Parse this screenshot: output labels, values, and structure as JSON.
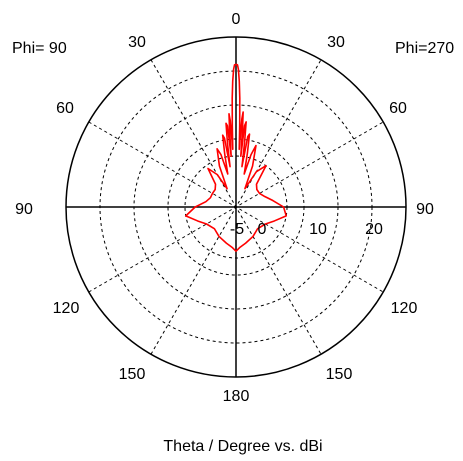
{
  "chart_data": {
    "type": "polar-line",
    "phi_left": "Phi= 90",
    "phi_right": "Phi=270",
    "xlabel": "Theta / Degree vs. dBi",
    "radial_unit": "dBi",
    "radial_range": [
      -20,
      30
    ],
    "radial_rings": [
      -5,
      0,
      10,
      20
    ],
    "radial_tick_labels": [
      "-5",
      "0",
      "10",
      "20"
    ],
    "angle_tick_labels": {
      "top": "0",
      "upper_left_30": "30",
      "upper_right_30": "30",
      "left_60": "60",
      "right_60": "60",
      "left_90": "90",
      "right_90": "90",
      "left_120": "120",
      "right_120": "120",
      "left_150": "150",
      "right_150": "150",
      "bottom": "180"
    },
    "series_color": "#ff0000",
    "series": [
      {
        "points": [
          [
            0,
            22
          ],
          [
            0.6,
            21.8
          ],
          [
            1.0,
            20.5
          ],
          [
            1.5,
            17
          ],
          [
            2.0,
            12
          ],
          [
            2.6,
            4
          ],
          [
            3.2,
            -3
          ],
          [
            3.8,
            6
          ],
          [
            4.3,
            8
          ],
          [
            4.8,
            3
          ],
          [
            5.4,
            -5
          ],
          [
            6.0,
            4
          ],
          [
            6.8,
            5.2
          ],
          [
            7.6,
            -1
          ],
          [
            8.4,
            -8
          ],
          [
            9.5,
            1
          ],
          [
            10.5,
            1.8
          ],
          [
            12,
            -4
          ],
          [
            14,
            -10
          ],
          [
            16,
            -4
          ],
          [
            18,
            -1
          ],
          [
            22,
            -7
          ],
          [
            26,
            -14
          ],
          [
            30,
            -8
          ],
          [
            36,
            -5
          ],
          [
            42,
            -11
          ],
          [
            50,
            -12
          ],
          [
            60,
            -12
          ],
          [
            70,
            -11
          ],
          [
            80,
            -9
          ],
          [
            90,
            -6
          ],
          [
            100,
            -5
          ],
          [
            110,
            -8
          ],
          [
            120,
            -10
          ],
          [
            135,
            -11
          ],
          [
            150,
            -10
          ],
          [
            165,
            -9
          ],
          [
            175,
            -8
          ],
          [
            180,
            -7
          ],
          [
            -175,
            -8
          ],
          [
            -165,
            -9
          ],
          [
            -150,
            -10
          ],
          [
            -135,
            -11
          ],
          [
            -120,
            -10
          ],
          [
            -110,
            -8
          ],
          [
            -100,
            -5
          ],
          [
            -90,
            -8
          ],
          [
            -80,
            -11
          ],
          [
            -70,
            -12
          ],
          [
            -60,
            -12
          ],
          [
            -50,
            -12
          ],
          [
            -42,
            -11
          ],
          [
            -36,
            -6
          ],
          [
            -30,
            -9
          ],
          [
            -26,
            -14
          ],
          [
            -22,
            -7
          ],
          [
            -18,
            -2
          ],
          [
            -16,
            -4
          ],
          [
            -14,
            -10
          ],
          [
            -12,
            -4
          ],
          [
            -10.5,
            1.5
          ],
          [
            -9.5,
            0.5
          ],
          [
            -8.4,
            -8
          ],
          [
            -7.6,
            -1
          ],
          [
            -6.8,
            4.8
          ],
          [
            -6.0,
            4
          ],
          [
            -5.4,
            -5
          ],
          [
            -4.8,
            2.5
          ],
          [
            -4.3,
            7.5
          ],
          [
            -3.8,
            5.5
          ],
          [
            -3.2,
            -3
          ],
          [
            -2.6,
            4
          ],
          [
            -2.0,
            12
          ],
          [
            -1.5,
            17
          ],
          [
            -1.0,
            20.5
          ],
          [
            -0.6,
            21.8
          ],
          [
            0,
            22
          ]
        ]
      }
    ]
  }
}
